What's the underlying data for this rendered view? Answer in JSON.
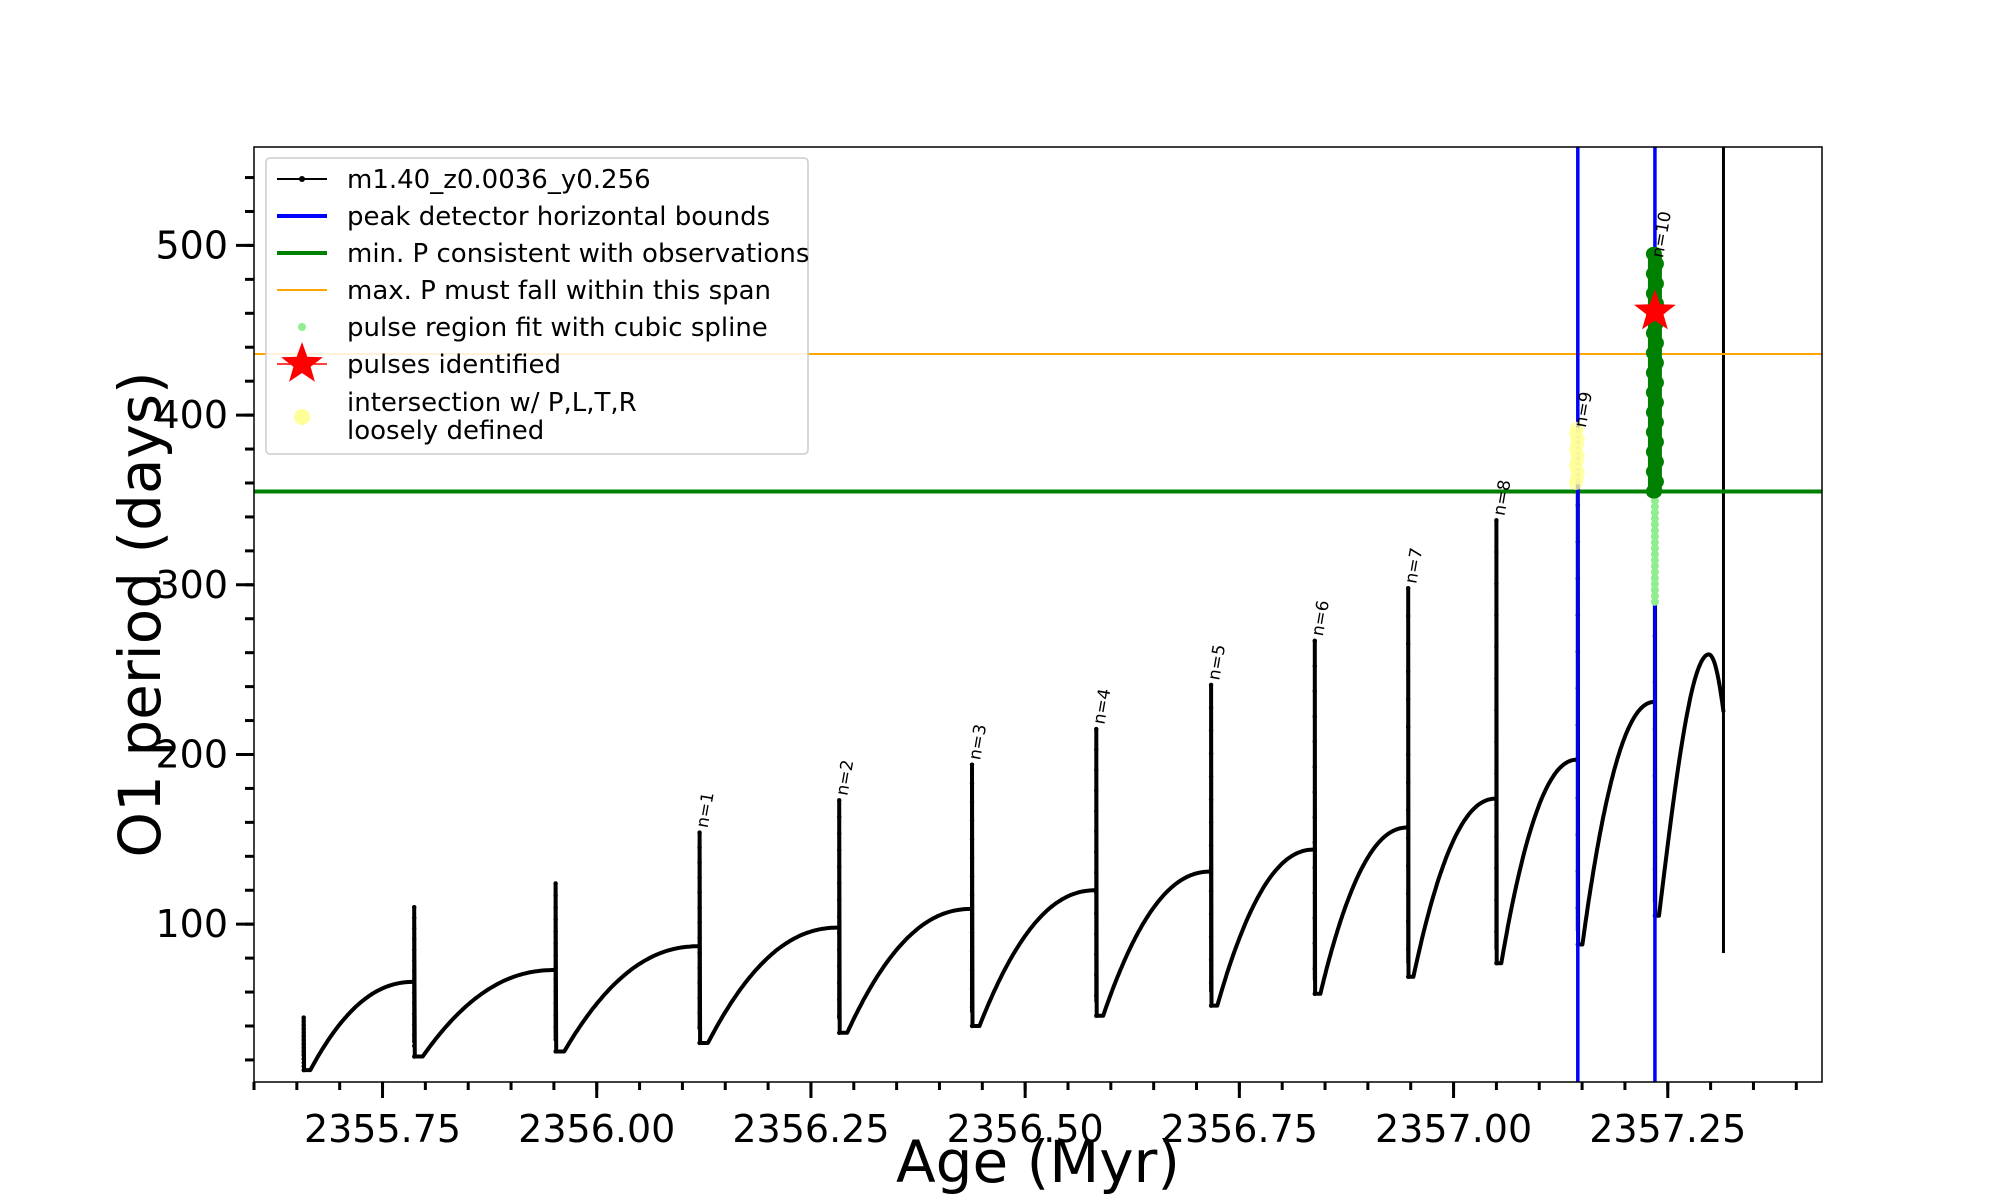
{
  "chart_data": {
    "type": "line",
    "xlabel": "Age (Myr)",
    "ylabel": "O1 period (days)",
    "xlim": [
      2355.6,
      2357.43
    ],
    "ylim": [
      7,
      558
    ],
    "x_ticks": [
      2355.75,
      2356.0,
      2356.25,
      2356.5,
      2356.75,
      2357.0,
      2357.25
    ],
    "x_tick_labels": [
      "2355.75",
      "2356.00",
      "2356.25",
      "2356.50",
      "2356.75",
      "2357.00",
      "2357.25"
    ],
    "y_ticks": [
      100,
      200,
      300,
      400,
      500
    ],
    "y_tick_labels": [
      "100",
      "200",
      "300",
      "400",
      "500"
    ],
    "grid": false,
    "legend_position": "top-left",
    "colors": {
      "model": "#000000",
      "bounds": "#0000ff",
      "min_p": "#008000",
      "max_p": "#ffa500",
      "spline": "#90ee90",
      "star": "#ff0000",
      "loose": "#ffff99"
    },
    "legend": [
      {
        "label": "m1.40_z0.0036_y0.256",
        "kind": "line-marker",
        "color": "#000000"
      },
      {
        "label": "peak detector horizontal bounds",
        "kind": "line",
        "color": "#0000ff"
      },
      {
        "label": "min. P consistent with observations",
        "kind": "line",
        "color": "#008000"
      },
      {
        "label": "max. P must fall within this span",
        "kind": "thin-line",
        "color": "#ffa500"
      },
      {
        "label": "pulse region fit with cubic spline",
        "kind": "dot",
        "color": "#90ee90"
      },
      {
        "label": "pulses identified",
        "kind": "star",
        "color": "#ff0000"
      },
      {
        "label": "intersection w/ P,L,T,R",
        "label2": "loosely defined",
        "kind": "big-dot",
        "color": "#ffff99"
      }
    ],
    "lines": {
      "min_period": 355,
      "max_period": 436,
      "bounds_x": [
        2357.145,
        2357.235
      ]
    },
    "series": [
      {
        "name": "m1.40_z0.0036_y0.256",
        "pulses": [
          {
            "x": 2355.658,
            "peak": 45,
            "dip": 14,
            "end_x": 2355.787,
            "end_y": 66
          },
          {
            "x": 2355.787,
            "peak": 110,
            "dip": 22,
            "end_x": 2355.952,
            "end_y": 73
          },
          {
            "x": 2355.952,
            "peak": 124,
            "dip": 25,
            "end_x": 2356.12,
            "end_y": 87
          },
          {
            "x": 2356.12,
            "peak": 154,
            "dip": 30,
            "end_x": 2356.283,
            "end_y": 98,
            "label": "n=1"
          },
          {
            "x": 2356.283,
            "peak": 173,
            "dip": 36,
            "end_x": 2356.438,
            "end_y": 109,
            "label": "n=2"
          },
          {
            "x": 2356.438,
            "peak": 194,
            "dip": 40,
            "end_x": 2356.583,
            "end_y": 120,
            "label": "n=3"
          },
          {
            "x": 2356.583,
            "peak": 215,
            "dip": 46,
            "end_x": 2356.717,
            "end_y": 131,
            "label": "n=4"
          },
          {
            "x": 2356.717,
            "peak": 241,
            "dip": 52,
            "end_x": 2356.838,
            "end_y": 144,
            "label": "n=5"
          },
          {
            "x": 2356.838,
            "peak": 267,
            "dip": 59,
            "end_x": 2356.947,
            "end_y": 157,
            "label": "n=6"
          },
          {
            "x": 2356.947,
            "peak": 298,
            "dip": 69,
            "end_x": 2357.05,
            "end_y": 174,
            "label": "n=7"
          },
          {
            "x": 2357.05,
            "peak": 338,
            "dip": 77,
            "end_x": 2357.145,
            "end_y": 197,
            "label": "n=8"
          },
          {
            "x": 2357.145,
            "peak": 390,
            "dip": 88,
            "end_x": 2357.235,
            "end_y": 231,
            "label": "n=9"
          },
          {
            "x": 2357.235,
            "peak": 490,
            "dip": 105,
            "end_x": 2357.315,
            "end_y": 225,
            "label": "n=10",
            "top": 259,
            "top_x": 2357.298
          }
        ],
        "final_spike": {
          "x": 2357.315,
          "peak": 540,
          "low": 83
        }
      }
    ],
    "cubic_spline_region": {
      "x": 2357.235,
      "y_min": 290,
      "y_max": 495
    },
    "pulses_identified": [
      {
        "x": 2357.235,
        "y": 461
      }
    ],
    "loosely_defined_region": {
      "x": 2357.145,
      "y_min": 360,
      "y_max": 392
    },
    "pulse_labels": [
      "n=1",
      "n=2",
      "n=3",
      "n=4",
      "n=5",
      "n=6",
      "n=7",
      "n=8",
      "n=9",
      "n=10"
    ]
  }
}
